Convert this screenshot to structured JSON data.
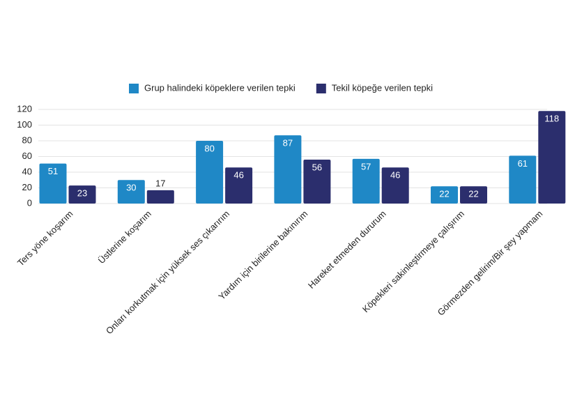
{
  "chart_data": {
    "type": "bar",
    "categories": [
      "Ters yöne koşarım",
      "Üstlerine koşarım",
      "Onları korkutmak için yüksek ses çıkarırım",
      "Yardım için birilerine bakınırım",
      "Hareket etmeden dururum",
      "Köpekleri sakinleştirmeye çalışırım",
      "Görmezden gelirim/Bir şey yapmam"
    ],
    "series": [
      {
        "name": "Grup halindeki köpeklere verilen tepki",
        "color": "#1f88c6",
        "values": [
          51,
          30,
          80,
          87,
          57,
          22,
          61
        ]
      },
      {
        "name": "Tekil köpeğe verilen tepki",
        "color": "#2b2e6d",
        "values": [
          23,
          17,
          46,
          56,
          46,
          22,
          118
        ]
      }
    ],
    "ylim": [
      0,
      120
    ],
    "yticks": [
      0,
      20,
      40,
      60,
      80,
      100,
      120
    ],
    "grid": true,
    "legend": "top"
  }
}
